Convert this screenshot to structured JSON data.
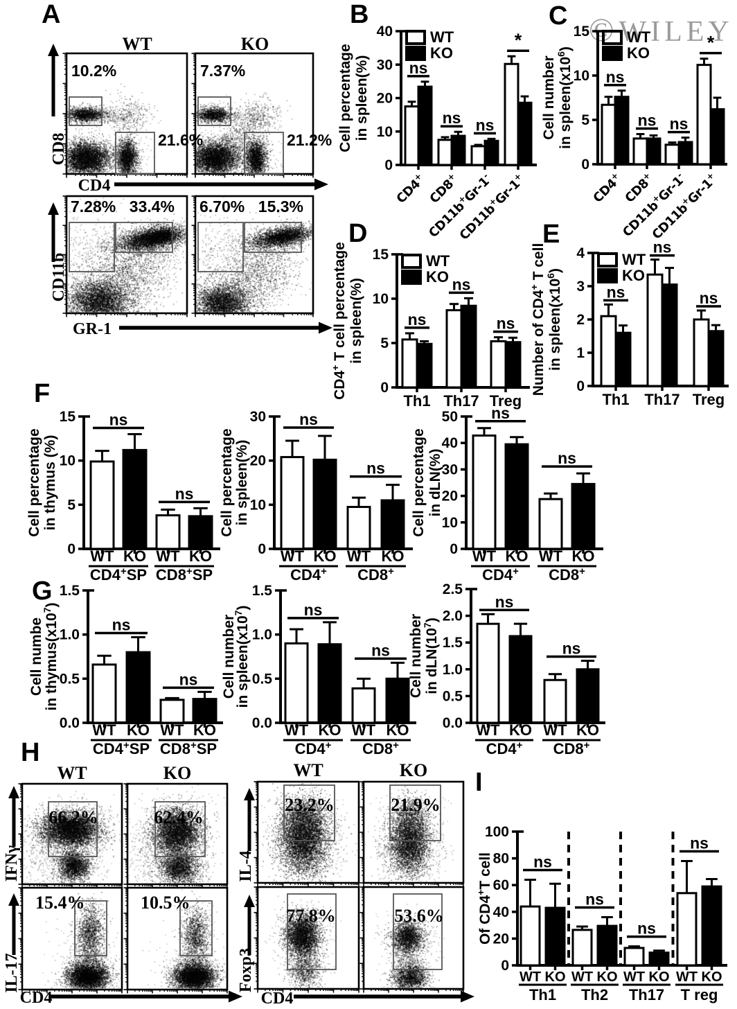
{
  "figure": {
    "panel_labels": {
      "A": "A",
      "B": "B",
      "C": "C",
      "D": "D",
      "E": "E",
      "F": "F",
      "G": "G",
      "H": "H",
      "I": "I"
    },
    "watermark_symbol": "©",
    "watermark_name": "WILEY",
    "colors": {
      "ink": "#000000",
      "wt_fill": "#ffffff",
      "ko_fill": "#000000",
      "watermark": "#9b9b9b",
      "gate": "#555555"
    }
  },
  "legend": {
    "wt": "WT",
    "ko": "KO"
  },
  "chart_data": [
    {
      "id": "B",
      "type": "bar",
      "panel": "B",
      "ylabel": [
        "Cell percentage",
        "in spleen(%)"
      ],
      "yticks": [
        "0",
        "10",
        "20",
        "30",
        "40"
      ],
      "ylim": [
        0,
        40
      ],
      "categories": [
        "CD4^+",
        "CD8^+",
        "CD11b^+Gr-1^-",
        "CD11b^+Gr-1^+"
      ],
      "series": [
        {
          "name": "WT",
          "values": [
            17.5,
            7.5,
            5.6,
            30.2
          ],
          "errors": [
            1.4,
            0.8,
            0.4,
            2.3
          ]
        },
        {
          "name": "KO",
          "values": [
            23.4,
            8.7,
            7.2,
            18.6
          ],
          "errors": [
            1.5,
            1.2,
            0.6,
            1.9
          ]
        }
      ],
      "significance": [
        "ns",
        "ns",
        "ns",
        "*"
      ],
      "legend": true
    },
    {
      "id": "C",
      "type": "bar",
      "panel": "C",
      "ylabel": [
        "Cell number",
        "in spleen(x10^6)"
      ],
      "yticks": [
        "0",
        "5",
        "10",
        "15"
      ],
      "ylim": [
        0,
        15
      ],
      "categories": [
        "CD4^+",
        "CD8^+",
        "CD11b^+Gr-1^-",
        "CD11b^+Gr-1^+"
      ],
      "series": [
        {
          "name": "WT",
          "values": [
            6.7,
            2.9,
            2.2,
            11.2
          ],
          "errors": [
            0.9,
            0.5,
            0.25,
            0.7
          ]
        },
        {
          "name": "KO",
          "values": [
            7.6,
            2.9,
            2.5,
            6.2
          ],
          "errors": [
            0.7,
            0.35,
            0.5,
            1.3
          ]
        }
      ],
      "significance": [
        "ns",
        "ns",
        "ns",
        "*"
      ],
      "legend": true
    },
    {
      "id": "D",
      "type": "bar",
      "panel": "D",
      "ylabel": [
        "CD4^+ T cell percentage",
        "in spleen(%)"
      ],
      "yticks": [
        "0",
        "5",
        "10",
        "15"
      ],
      "ylim": [
        0,
        15
      ],
      "categories": [
        "Th1",
        "Th17",
        "Treg"
      ],
      "series": [
        {
          "name": "WT",
          "values": [
            5.4,
            8.7,
            5.2
          ],
          "errors": [
            0.7,
            0.7,
            0.45
          ]
        },
        {
          "name": "KO",
          "values": [
            4.9,
            9.2,
            5.1
          ],
          "errors": [
            0.3,
            0.85,
            0.5
          ]
        }
      ],
      "significance": [
        "ns",
        "ns",
        "ns"
      ],
      "legend": true
    },
    {
      "id": "E",
      "type": "bar",
      "panel": "E",
      "ylabel": [
        "Number of CD4^+ T cell",
        "in spleen(x10^6)"
      ],
      "yticks": [
        "0",
        "1",
        "2",
        "3",
        "4"
      ],
      "ylim": [
        0,
        4
      ],
      "categories": [
        "Th1",
        "Th17",
        "Treg"
      ],
      "series": [
        {
          "name": "WT",
          "values": [
            2.1,
            3.35,
            2.0
          ],
          "errors": [
            0.35,
            0.45,
            0.27
          ]
        },
        {
          "name": "KO",
          "values": [
            1.6,
            3.05,
            1.65
          ],
          "errors": [
            0.22,
            0.5,
            0.18
          ]
        }
      ],
      "significance": [
        "ns",
        "ns",
        "ns"
      ],
      "legend": true
    },
    {
      "id": "F1",
      "type": "bar",
      "panel": "F",
      "ylabel": [
        "Cell percentage",
        "in thymus (%)"
      ],
      "yticks": [
        "0",
        "5",
        "10",
        "15"
      ],
      "ylim": [
        0,
        15
      ],
      "categories": [
        "CD4^+SP",
        "CD8^+SP"
      ],
      "series": [
        {
          "name": "WT",
          "values": [
            9.9,
            3.8
          ],
          "errors": [
            1.2,
            0.65
          ]
        },
        {
          "name": "KO",
          "values": [
            11.2,
            3.7
          ],
          "errors": [
            1.8,
            0.9
          ]
        }
      ],
      "significance": [
        "ns",
        "ns"
      ],
      "legend": false
    },
    {
      "id": "F2",
      "type": "bar",
      "panel": "F",
      "ylabel": [
        "Cell percentage",
        "in spleen(%)"
      ],
      "yticks": [
        "0",
        "10",
        "20",
        "30"
      ],
      "ylim": [
        0,
        30
      ],
      "categories": [
        "CD4^+",
        "CD8^+"
      ],
      "series": [
        {
          "name": "WT",
          "values": [
            20.8,
            9.5
          ],
          "errors": [
            3.7,
            2.1
          ]
        },
        {
          "name": "KO",
          "values": [
            20.2,
            11.0
          ],
          "errors": [
            5.4,
            3.5
          ]
        }
      ],
      "significance": [
        "ns",
        "ns"
      ],
      "legend": false
    },
    {
      "id": "F3",
      "type": "bar",
      "panel": "F",
      "ylabel": [
        "Cell percentage",
        "in dLN(%)"
      ],
      "yticks": [
        "0",
        "10",
        "20",
        "30",
        "40",
        "50"
      ],
      "ylim": [
        0,
        50
      ],
      "categories": [
        "CD4^+",
        "CD8^+"
      ],
      "series": [
        {
          "name": "WT",
          "values": [
            42.8,
            18.8
          ],
          "errors": [
            2.8,
            2.1
          ]
        },
        {
          "name": "KO",
          "values": [
            39.5,
            24.5
          ],
          "errors": [
            2.7,
            4.0
          ]
        }
      ],
      "significance": [
        "ns",
        "ns"
      ],
      "legend": false
    },
    {
      "id": "G1",
      "type": "bar",
      "panel": "G",
      "ylabel": [
        "Cell numbe",
        "in thymus(x10^7)"
      ],
      "yticks": [
        "0.0",
        "0.5",
        "1.0",
        "1.5"
      ],
      "ylim": [
        0,
        1.5
      ],
      "categories": [
        "CD4^+SP",
        "CD8^+SP"
      ],
      "series": [
        {
          "name": "WT",
          "values": [
            0.66,
            0.26
          ],
          "errors": [
            0.1,
            0.02
          ]
        },
        {
          "name": "KO",
          "values": [
            0.8,
            0.27
          ],
          "errors": [
            0.17,
            0.08
          ]
        }
      ],
      "significance": [
        "ns",
        "ns"
      ],
      "legend": false
    },
    {
      "id": "G2",
      "type": "bar",
      "panel": "G",
      "ylabel": [
        "Cell number",
        "in spleen(x10^7)"
      ],
      "yticks": [
        "0.0",
        "0.5",
        "1.0",
        "1.5"
      ],
      "ylim": [
        0,
        1.5
      ],
      "categories": [
        "CD4^+",
        "CD8^+"
      ],
      "series": [
        {
          "name": "WT",
          "values": [
            0.9,
            0.39
          ],
          "errors": [
            0.16,
            0.11
          ]
        },
        {
          "name": "KO",
          "values": [
            0.89,
            0.5
          ],
          "errors": [
            0.25,
            0.18
          ]
        }
      ],
      "significance": [
        "ns",
        "ns"
      ],
      "legend": false
    },
    {
      "id": "G3",
      "type": "bar",
      "panel": "G",
      "ylabel": [
        "Cell number",
        "in dLN(10^7)"
      ],
      "yticks": [
        "0.0",
        "0.5",
        "1.0",
        "1.5",
        "2.0",
        "2.5"
      ],
      "ylim": [
        0,
        2.5
      ],
      "categories": [
        "CD4^+",
        "CD8^+"
      ],
      "series": [
        {
          "name": "WT",
          "values": [
            1.85,
            0.8
          ],
          "errors": [
            0.18,
            0.11
          ]
        },
        {
          "name": "KO",
          "values": [
            1.62,
            1.0
          ],
          "errors": [
            0.23,
            0.16
          ]
        }
      ],
      "significance": [
        "ns",
        "ns"
      ],
      "legend": false
    },
    {
      "id": "I",
      "type": "bar",
      "panel": "I",
      "ylabel": [
        "Of CD4^+T cell"
      ],
      "yticks": [
        "0",
        "20",
        "40",
        "60",
        "80",
        "100"
      ],
      "ylim": [
        0,
        100
      ],
      "categories": [
        "Th1",
        "Th2",
        "Th17",
        "T reg"
      ],
      "series": [
        {
          "name": "WT",
          "values": [
            44,
            26.5,
            13,
            54
          ],
          "errors": [
            20,
            2.5,
            1.2,
            24
          ]
        },
        {
          "name": "KO",
          "values": [
            43,
            29.5,
            9.5,
            59
          ],
          "errors": [
            18,
            6.5,
            1.5,
            5.5
          ]
        }
      ],
      "significance": [
        "ns",
        "ns",
        "ns",
        "ns"
      ],
      "legend": false
    },
    {
      "id": "A1",
      "type": "scatter",
      "panel": "A",
      "x_axis": "CD4",
      "y_axis": "CD8",
      "columns": [
        "WT",
        "KO"
      ],
      "plots": [
        {
          "column": "WT",
          "gate_percentages": [
            "10.2%",
            "21.6%"
          ]
        },
        {
          "column": "KO",
          "gate_percentages": [
            "7.37%",
            "21.2%"
          ]
        }
      ]
    },
    {
      "id": "A2",
      "type": "scatter",
      "panel": "A",
      "x_axis": "GR-1",
      "y_axis": "CD11b",
      "columns": [
        "WT",
        "KO"
      ],
      "plots": [
        {
          "column": "WT",
          "gate_percentages": [
            "7.28%",
            "33.4%"
          ]
        },
        {
          "column": "KO",
          "gate_percentages": [
            "6.70%",
            "15.3%"
          ]
        }
      ]
    },
    {
      "id": "H1",
      "type": "scatter",
      "panel": "H",
      "x_axis": "CD4",
      "y_axis": "IFNγ",
      "columns": [
        "WT",
        "KO"
      ],
      "plots": [
        {
          "column": "WT",
          "gate_percentages": [
            "66.2%"
          ]
        },
        {
          "column": "KO",
          "gate_percentages": [
            "62.4%"
          ]
        }
      ]
    },
    {
      "id": "H2",
      "type": "scatter",
      "panel": "H",
      "x_axis": "CD4",
      "y_axis": "IL-17",
      "columns": [
        "WT",
        "KO"
      ],
      "plots": [
        {
          "column": "WT",
          "gate_percentages": [
            "15.4%"
          ]
        },
        {
          "column": "KO",
          "gate_percentages": [
            "10.5%"
          ]
        }
      ]
    },
    {
      "id": "H3",
      "type": "scatter",
      "panel": "H",
      "x_axis": "CD4",
      "y_axis": "IL-4",
      "columns": [
        "WT",
        "KO"
      ],
      "plots": [
        {
          "column": "WT",
          "gate_percentages": [
            "23.2%"
          ]
        },
        {
          "column": "KO",
          "gate_percentages": [
            "21.9%"
          ]
        }
      ]
    },
    {
      "id": "H4",
      "type": "scatter",
      "panel": "H",
      "x_axis": "CD4",
      "y_axis": "Foxp3",
      "columns": [
        "WT",
        "KO"
      ],
      "plots": [
        {
          "column": "WT",
          "gate_percentages": [
            "77.8%"
          ]
        },
        {
          "column": "KO",
          "gate_percentages": [
            "53.6%"
          ]
        }
      ]
    }
  ]
}
